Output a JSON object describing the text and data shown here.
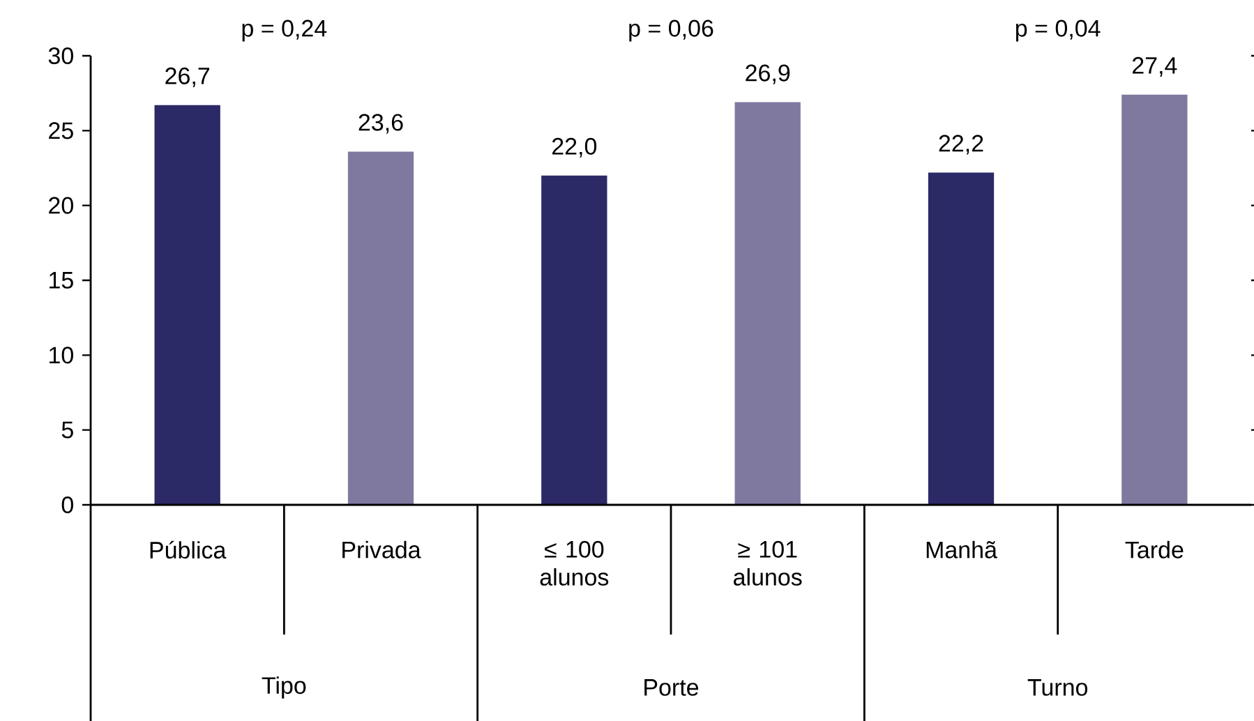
{
  "chart_data": {
    "type": "bar",
    "categories": [
      "Pública",
      "Privada",
      "≤ 100 alunos",
      "≥ 101 alunos",
      "Manhã",
      "Tarde"
    ],
    "values": [
      26.7,
      23.6,
      22.0,
      26.9,
      22.2,
      27.4
    ],
    "colors": [
      "#2b2966",
      "#7f79a0",
      "#2b2966",
      "#7f79a0",
      "#2b2966",
      "#7f79a0"
    ],
    "value_labels": [
      "26,7",
      "23,6",
      "22,0",
      "26,9",
      "22,2",
      "27,4"
    ],
    "ylim": [
      0,
      30
    ],
    "yticks": [
      0,
      5,
      10,
      15,
      20,
      25,
      30
    ],
    "annotations": [
      "p = 0,24",
      "p = 0,06",
      "p = 0,04",
      "Tipo",
      "Porte",
      "Turno"
    ]
  }
}
